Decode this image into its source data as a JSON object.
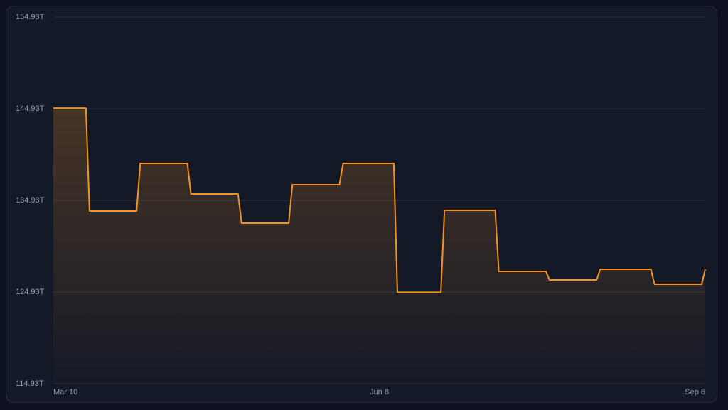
{
  "chart_data": {
    "type": "line",
    "x": [
      "Mar 10",
      "Mar 19",
      "Mar 20",
      "Apr 2",
      "Apr 3",
      "Apr 16",
      "Apr 17",
      "Apr 30",
      "May 1",
      "May 14",
      "May 15",
      "May 28",
      "May 29",
      "Jun 12",
      "Jun 13",
      "Jun 25",
      "Jun 26",
      "Jul 10",
      "Jul 11",
      "Jul 24",
      "Jul 25",
      "Aug 7",
      "Aug 8",
      "Aug 22",
      "Aug 23",
      "Sep 5",
      "Sep 6"
    ],
    "values": [
      145.0,
      145.0,
      133.77,
      133.77,
      138.96,
      138.96,
      135.63,
      135.63,
      132.45,
      132.45,
      136.64,
      136.64,
      138.96,
      138.96,
      124.9,
      124.9,
      133.84,
      133.84,
      127.18,
      127.18,
      126.25,
      126.25,
      127.41,
      127.41,
      125.78,
      125.78,
      127.41
    ],
    "color": "#f7931a",
    "xlim": [
      "Mar 10",
      "Sep 6"
    ],
    "xticks": [
      "Mar 10",
      "Jun 8",
      "Sep 6"
    ],
    "ylim": [
      114.93,
      154.93
    ],
    "yticks": [
      {
        "value": 114.93,
        "label": "114.93T"
      },
      {
        "value": 124.93,
        "label": "124.93T"
      },
      {
        "value": 134.93,
        "label": "134.93T"
      },
      {
        "value": 144.93,
        "label": "144.93T"
      },
      {
        "value": 154.93,
        "label": "154.93T"
      }
    ],
    "grid": true
  }
}
